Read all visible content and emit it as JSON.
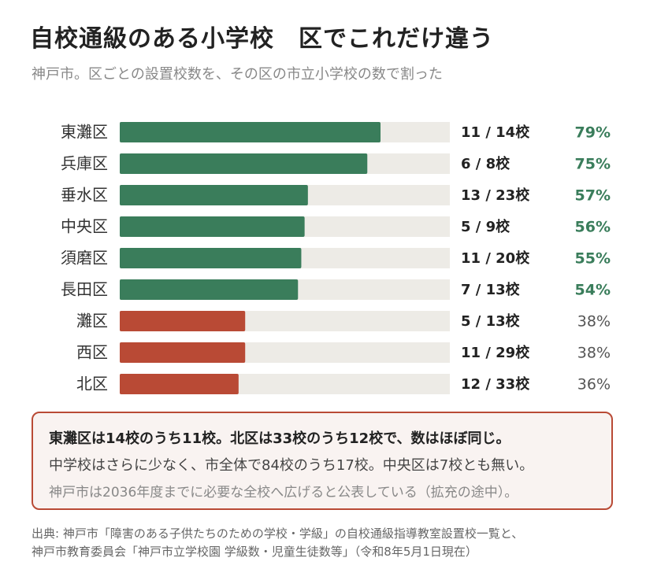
{
  "header": {
    "title": "自校通級のある小学校　区でこれだけ違う",
    "subtitle": "神戸市。区ごとの設置校数を、その区の市立小学校の数で割った"
  },
  "colors": {
    "high": "#3a7d5b",
    "low": "#b94a35",
    "track": "#edebe6",
    "pct_high": "#3a7d5b",
    "pct_low": "#555555"
  },
  "chart_data": {
    "type": "bar",
    "orientation": "horizontal",
    "categories": [
      "東灘区",
      "兵庫区",
      "垂水区",
      "中央区",
      "須磨区",
      "長田区",
      "灘区",
      "西区",
      "北区"
    ],
    "values": [
      79,
      75,
      57,
      56,
      55,
      54,
      38,
      38,
      36
    ],
    "value_labels": [
      "79%",
      "75%",
      "57%",
      "56%",
      "55%",
      "54%",
      "38%",
      "38%",
      "36%"
    ],
    "count_labels": [
      "11 / 14校",
      "6 / 8校",
      "13 / 23校",
      "5 / 9校",
      "11 / 20校",
      "7 / 13校",
      "5 / 13校",
      "11 / 29校",
      "12 / 33校"
    ],
    "highlight": [
      "high",
      "high",
      "high",
      "high",
      "high",
      "high",
      "low",
      "low",
      "low"
    ],
    "xlim": [
      0,
      100
    ],
    "grid": false,
    "legend": "none"
  },
  "callout": {
    "line1": "東灘区は14校のうち11校。北区は33校のうち12校で、数はほぼ同じ。",
    "line2": "中学校はさらに少なく、市全体で84校のうち17校。中央区は7校とも無い。",
    "line3": "神戸市は2036年度までに必要な全校へ広げると公表している（拡充の途中）。"
  },
  "source": {
    "line1": "出典: 神戸市「障害のある子供たちのための学校・学級」の自校通級指導教室設置校一覧と、",
    "line2": "神戸市教育委員会「神戸市立学校園 学級数・児童生徒数等」（令和8年5月1日現在）"
  }
}
